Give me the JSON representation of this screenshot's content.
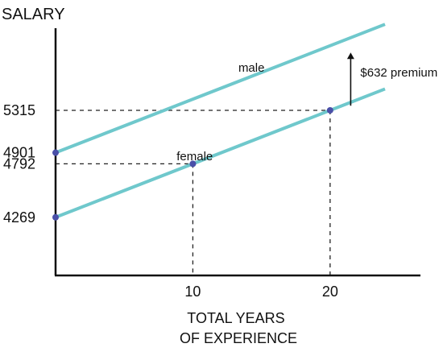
{
  "chart_data": {
    "type": "line",
    "title": "",
    "ylabel": "SALARY",
    "xlabel_lines": [
      "TOTAL YEARS",
      "OF EXPERIENCE"
    ],
    "xlim": [
      0,
      24
    ],
    "ylim": [
      3700,
      6000
    ],
    "x_ticks": [
      {
        "value": 10,
        "label": "10"
      },
      {
        "value": 20,
        "label": "20"
      }
    ],
    "y_ticks": [
      {
        "value": 5315,
        "label": "5315"
      },
      {
        "value": 4901,
        "label": "4901"
      },
      {
        "value": 4792,
        "label": "4792"
      },
      {
        "value": 4269,
        "label": "4269"
      }
    ],
    "series": [
      {
        "name": "male",
        "color": "#6fc8cc",
        "x": [
          0,
          24
        ],
        "y": [
          4901,
          6156
        ]
      },
      {
        "name": "female",
        "color": "#6fc8cc",
        "x": [
          0,
          24
        ],
        "y": [
          4269,
          5524
        ]
      }
    ],
    "points": [
      {
        "x": 0,
        "y": 4901
      },
      {
        "x": 0,
        "y": 4269
      },
      {
        "x": 10,
        "y": 4792
      },
      {
        "x": 20,
        "y": 5315
      }
    ],
    "point_color": "#4a4fa8",
    "dashed_guides": [
      {
        "x": 10,
        "y": 4792
      },
      {
        "x": 20,
        "y": 5315
      }
    ],
    "annotation": {
      "text": "$632 premium",
      "arrow_x": 21.5,
      "arrow_from_y": 5360,
      "arrow_to_y": 5880
    }
  }
}
